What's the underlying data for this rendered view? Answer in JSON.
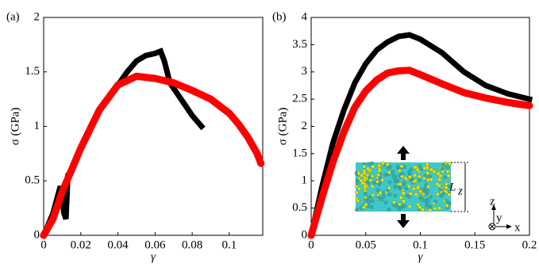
{
  "chart_data": [
    {
      "type": "line",
      "panel_label": "(a)",
      "xlabel": "γ",
      "ylabel": "σ (GPa)",
      "xlim": [
        0,
        0.118
      ],
      "ylim": [
        0,
        2
      ],
      "xticks": [
        0,
        0.02,
        0.04,
        0.06,
        0.08,
        0.1
      ],
      "yticks": [
        0,
        0.5,
        1,
        1.5,
        2
      ],
      "series": [
        {
          "color": "#000000",
          "marker": "square",
          "x": [
            0,
            0.005,
            0.009,
            0.011,
            0.012,
            0.013,
            0.015,
            0.02,
            0.03,
            0.04,
            0.045,
            0.05,
            0.055,
            0.06,
            0.063,
            0.065,
            0.068,
            0.072,
            0.076,
            0.08,
            0.085
          ],
          "values": [
            0,
            0.2,
            0.45,
            0.2,
            0.15,
            0.55,
            0.6,
            0.8,
            1.15,
            1.38,
            1.5,
            1.6,
            1.65,
            1.67,
            1.69,
            1.6,
            1.4,
            1.3,
            1.2,
            1.1,
            1.0
          ]
        },
        {
          "color": "#ff0000",
          "marker": "circle",
          "x": [
            0,
            0.005,
            0.01,
            0.02,
            0.03,
            0.04,
            0.05,
            0.06,
            0.07,
            0.08,
            0.09,
            0.1,
            0.105,
            0.11,
            0.115,
            0.117
          ],
          "values": [
            0,
            0.15,
            0.4,
            0.8,
            1.15,
            1.38,
            1.46,
            1.44,
            1.4,
            1.33,
            1.25,
            1.12,
            1.02,
            0.9,
            0.75,
            0.66
          ]
        }
      ]
    },
    {
      "type": "line",
      "panel_label": "(b)",
      "xlabel": "γ",
      "ylabel": "σ (GPa)",
      "xlim": [
        0,
        0.2
      ],
      "ylim": [
        0,
        4
      ],
      "xticks": [
        0,
        0.05,
        0.1,
        0.15,
        0.2
      ],
      "yticks": [
        0,
        0.5,
        1,
        1.5,
        2,
        2.5,
        3,
        3.5,
        4
      ],
      "series": [
        {
          "color": "#000000",
          "marker": "square",
          "x": [
            0,
            0.01,
            0.02,
            0.03,
            0.04,
            0.05,
            0.06,
            0.07,
            0.08,
            0.09,
            0.1,
            0.12,
            0.14,
            0.16,
            0.18,
            0.2
          ],
          "values": [
            0,
            0.9,
            1.7,
            2.3,
            2.8,
            3.15,
            3.4,
            3.55,
            3.65,
            3.68,
            3.6,
            3.35,
            3.0,
            2.75,
            2.6,
            2.5
          ]
        },
        {
          "color": "#ff0000",
          "marker": "circle",
          "x": [
            0,
            0.01,
            0.02,
            0.03,
            0.04,
            0.05,
            0.06,
            0.07,
            0.08,
            0.09,
            0.1,
            0.12,
            0.14,
            0.16,
            0.18,
            0.2
          ],
          "values": [
            0,
            0.7,
            1.35,
            1.9,
            2.35,
            2.65,
            2.85,
            2.98,
            3.02,
            3.03,
            2.95,
            2.78,
            2.62,
            2.52,
            2.44,
            2.38
          ]
        }
      ],
      "inset": {
        "length_label": "L",
        "length_sub": "z",
        "axis_z": "z",
        "axis_y": "y",
        "axis_x": "x"
      }
    }
  ]
}
